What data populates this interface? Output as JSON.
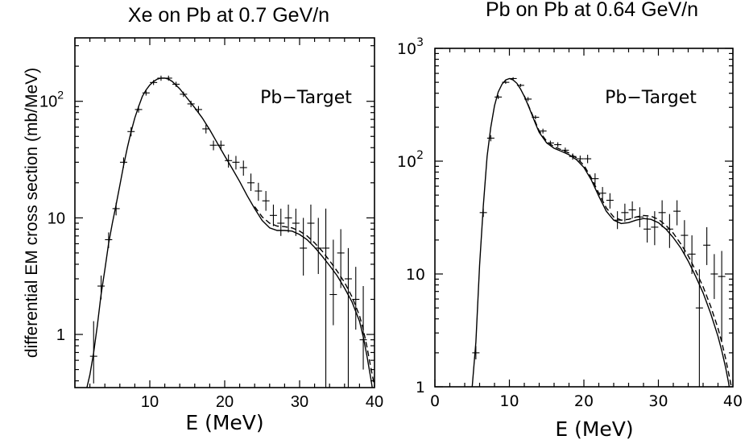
{
  "figure": {
    "ylabel": "differential EM cross section (mb/MeV)"
  },
  "chart_data": [
    {
      "type": "line",
      "title": "Xe on Pb at 0.7 GeV/n",
      "annotation": "Pb−Target",
      "xlabel": "E (MeV)",
      "ylabel": "differential EM cross section (mb/MeV)",
      "xlim": [
        0,
        40
      ],
      "ylim": [
        0.35,
        350
      ],
      "yscale": "log",
      "x_ticks": [
        10,
        20,
        30,
        40
      ],
      "y_ticks": [
        {
          "value": 1,
          "label": "1"
        },
        {
          "value": 10,
          "label": "10"
        },
        {
          "value": 100,
          "label": "10",
          "exponent": "2"
        }
      ],
      "points": [
        {
          "x": 2.5,
          "y": 0.65,
          "ylo": 0.38,
          "yhi": 1.3
        },
        {
          "x": 3.5,
          "y": 2.6,
          "ylo": 2.0,
          "yhi": 3.2
        },
        {
          "x": 4.5,
          "y": 6.5,
          "ylo": 5.5,
          "yhi": 7.5
        },
        {
          "x": 5.5,
          "y": 12,
          "ylo": 10.5,
          "yhi": 13.5
        },
        {
          "x": 6.5,
          "y": 30,
          "ylo": 27,
          "yhi": 33
        },
        {
          "x": 7.5,
          "y": 55,
          "ylo": 50,
          "yhi": 60
        },
        {
          "x": 8.5,
          "y": 85,
          "ylo": 80,
          "yhi": 92
        },
        {
          "x": 9.5,
          "y": 118,
          "ylo": 112,
          "yhi": 125
        },
        {
          "x": 10.5,
          "y": 145,
          "ylo": 138,
          "yhi": 152
        },
        {
          "x": 11.5,
          "y": 158,
          "ylo": 150,
          "yhi": 166
        },
        {
          "x": 12.5,
          "y": 158,
          "ylo": 150,
          "yhi": 166
        },
        {
          "x": 13.5,
          "y": 140,
          "ylo": 133,
          "yhi": 147
        },
        {
          "x": 14.5,
          "y": 115,
          "ylo": 109,
          "yhi": 121
        },
        {
          "x": 15.5,
          "y": 95,
          "ylo": 89,
          "yhi": 101
        },
        {
          "x": 16.5,
          "y": 85,
          "ylo": 79,
          "yhi": 91
        },
        {
          "x": 17.5,
          "y": 58,
          "ylo": 53,
          "yhi": 63
        },
        {
          "x": 18.5,
          "y": 42,
          "ylo": 38,
          "yhi": 46
        },
        {
          "x": 19.5,
          "y": 42,
          "ylo": 38,
          "yhi": 46
        },
        {
          "x": 20.5,
          "y": 31,
          "ylo": 27,
          "yhi": 35
        },
        {
          "x": 21.5,
          "y": 30,
          "ylo": 26,
          "yhi": 34
        },
        {
          "x": 22.5,
          "y": 27,
          "ylo": 23,
          "yhi": 31
        },
        {
          "x": 23.5,
          "y": 20,
          "ylo": 17,
          "yhi": 24
        },
        {
          "x": 24.5,
          "y": 17,
          "ylo": 14,
          "yhi": 20
        },
        {
          "x": 25.5,
          "y": 14,
          "ylo": 11.5,
          "yhi": 17
        },
        {
          "x": 26.5,
          "y": 10.5,
          "ylo": 8.5,
          "yhi": 13
        },
        {
          "x": 27.5,
          "y": 9,
          "ylo": 7,
          "yhi": 12
        },
        {
          "x": 28.5,
          "y": 10,
          "ylo": 7.5,
          "yhi": 13
        },
        {
          "x": 29.5,
          "y": 9,
          "ylo": 7,
          "yhi": 12
        },
        {
          "x": 30.5,
          "y": 5.5,
          "ylo": 3.2,
          "yhi": 10
        },
        {
          "x": 31.5,
          "y": 9,
          "ylo": 6,
          "yhi": 13
        },
        {
          "x": 32.5,
          "y": 5.5,
          "ylo": 3.3,
          "yhi": 10
        },
        {
          "x": 33.5,
          "y": 5.5,
          "ylo": 0.35,
          "yhi": 12
        },
        {
          "x": 34.5,
          "y": 2.2,
          "ylo": 1.2,
          "yhi": 6.5
        },
        {
          "x": 35.5,
          "y": 5,
          "ylo": 2.5,
          "yhi": 8
        },
        {
          "x": 36.5,
          "y": 3,
          "ylo": 0.35,
          "yhi": 5.5
        },
        {
          "x": 37.5,
          "y": 2,
          "ylo": 1.1,
          "yhi": 3.8
        },
        {
          "x": 38.5,
          "y": 0.9,
          "ylo": 0.5,
          "yhi": 2.6
        }
      ],
      "curve_solid": [
        [
          1.6,
          0.35
        ],
        [
          2,
          0.45
        ],
        [
          2.5,
          0.7
        ],
        [
          3,
          1.2
        ],
        [
          3.5,
          2.2
        ],
        [
          4,
          3.6
        ],
        [
          4.5,
          6
        ],
        [
          5,
          9
        ],
        [
          5.5,
          13
        ],
        [
          6,
          19
        ],
        [
          6.5,
          28
        ],
        [
          7,
          40
        ],
        [
          7.5,
          55
        ],
        [
          8,
          72
        ],
        [
          8.5,
          90
        ],
        [
          9,
          110
        ],
        [
          9.5,
          125
        ],
        [
          10,
          138
        ],
        [
          10.5,
          148
        ],
        [
          11,
          155
        ],
        [
          11.5,
          158
        ],
        [
          12,
          158
        ],
        [
          12.5,
          155
        ],
        [
          13,
          148
        ],
        [
          14,
          128
        ],
        [
          15,
          106
        ],
        [
          16,
          88
        ],
        [
          17,
          72
        ],
        [
          18,
          57
        ],
        [
          19,
          44
        ],
        [
          20,
          34
        ],
        [
          21,
          26.5
        ],
        [
          22,
          20.5
        ],
        [
          23,
          15.5
        ],
        [
          24,
          12
        ],
        [
          25,
          9.5
        ],
        [
          26,
          8.2
        ],
        [
          27,
          7.8
        ],
        [
          28,
          7.8
        ],
        [
          29,
          7.7
        ],
        [
          30,
          7.2
        ],
        [
          31,
          6.5
        ],
        [
          32,
          5.6
        ],
        [
          33,
          4.7
        ],
        [
          34,
          3.9
        ],
        [
          35,
          3.2
        ],
        [
          36,
          2.5
        ],
        [
          37,
          1.9
        ],
        [
          38,
          1.3
        ],
        [
          38.5,
          0.95
        ],
        [
          39,
          0.65
        ],
        [
          39.5,
          0.42
        ],
        [
          39.7,
          0.35
        ]
      ],
      "curve_dashed": [
        [
          24,
          12.5
        ],
        [
          25,
          10.2
        ],
        [
          26,
          9
        ],
        [
          27,
          8.5
        ],
        [
          28,
          8.4
        ],
        [
          29,
          8.2
        ],
        [
          30,
          7.7
        ],
        [
          31,
          7
        ],
        [
          32,
          6.1
        ],
        [
          33,
          5.2
        ],
        [
          34,
          4.3
        ],
        [
          35,
          3.5
        ],
        [
          36,
          2.8
        ],
        [
          37,
          2.1
        ],
        [
          38,
          1.45
        ],
        [
          38.5,
          1.1
        ],
        [
          39,
          0.78
        ],
        [
          39.5,
          0.52
        ],
        [
          40,
          0.36
        ]
      ]
    },
    {
      "type": "line",
      "title": "Pb on Pb at 0.64 GeV/n",
      "annotation": "Pb−Target",
      "xlabel": "E (MeV)",
      "xlim": [
        0,
        40
      ],
      "ylim": [
        1,
        1000
      ],
      "yscale": "log",
      "x_ticks": [
        0,
        10,
        20,
        30,
        40
      ],
      "y_ticks": [
        {
          "value": 1,
          "label": "1"
        },
        {
          "value": 10,
          "label": "10"
        },
        {
          "value": 100,
          "label": "10",
          "exponent": "2"
        },
        {
          "value": 1000,
          "label": "10",
          "exponent": "3"
        }
      ],
      "points": [
        {
          "x": 5.5,
          "y": 2,
          "ylo": 1.75,
          "yhi": 2.3
        },
        {
          "x": 6.5,
          "y": 35,
          "ylo": 32,
          "yhi": 38
        },
        {
          "x": 7.5,
          "y": 160,
          "ylo": 150,
          "yhi": 170
        },
        {
          "x": 8.5,
          "y": 370,
          "ylo": 355,
          "yhi": 385
        },
        {
          "x": 9.5,
          "y": 500,
          "ylo": 485,
          "yhi": 515
        },
        {
          "x": 10.5,
          "y": 540,
          "ylo": 525,
          "yhi": 555
        },
        {
          "x": 11.5,
          "y": 470,
          "ylo": 455,
          "yhi": 485
        },
        {
          "x": 12.5,
          "y": 355,
          "ylo": 340,
          "yhi": 370
        },
        {
          "x": 13.5,
          "y": 245,
          "ylo": 235,
          "yhi": 255
        },
        {
          "x": 14.5,
          "y": 185,
          "ylo": 176,
          "yhi": 194
        },
        {
          "x": 15.5,
          "y": 145,
          "ylo": 138,
          "yhi": 152
        },
        {
          "x": 16.5,
          "y": 140,
          "ylo": 133,
          "yhi": 147
        },
        {
          "x": 17.5,
          "y": 125,
          "ylo": 118,
          "yhi": 132
        },
        {
          "x": 18.5,
          "y": 110,
          "ylo": 103,
          "yhi": 117
        },
        {
          "x": 19.5,
          "y": 105,
          "ylo": 98,
          "yhi": 112
        },
        {
          "x": 20.5,
          "y": 105,
          "ylo": 96,
          "yhi": 114
        },
        {
          "x": 21.5,
          "y": 70,
          "ylo": 62,
          "yhi": 78
        },
        {
          "x": 22.5,
          "y": 52,
          "ylo": 45,
          "yhi": 59
        },
        {
          "x": 23.5,
          "y": 45,
          "ylo": 38,
          "yhi": 52
        },
        {
          "x": 24.5,
          "y": 30,
          "ylo": 25,
          "yhi": 36
        },
        {
          "x": 25.5,
          "y": 35,
          "ylo": 29,
          "yhi": 42
        },
        {
          "x": 26.5,
          "y": 37,
          "ylo": 31,
          "yhi": 44
        },
        {
          "x": 27.5,
          "y": 32,
          "ylo": 26,
          "yhi": 39
        },
        {
          "x": 28.5,
          "y": 25,
          "ylo": 19,
          "yhi": 32
        },
        {
          "x": 29.5,
          "y": 26,
          "ylo": 18,
          "yhi": 36
        },
        {
          "x": 30.5,
          "y": 35,
          "ylo": 26,
          "yhi": 45
        },
        {
          "x": 31.5,
          "y": 25,
          "ylo": 17,
          "yhi": 34
        },
        {
          "x": 32.5,
          "y": 36,
          "ylo": 27,
          "yhi": 45
        },
        {
          "x": 33.5,
          "y": 22,
          "ylo": 15,
          "yhi": 30
        },
        {
          "x": 34.5,
          "y": 15,
          "ylo": 10,
          "yhi": 22
        },
        {
          "x": 35.5,
          "y": 5,
          "ylo": 1,
          "yhi": 11
        },
        {
          "x": 36.5,
          "y": 18,
          "ylo": 12,
          "yhi": 26
        },
        {
          "x": 37.5,
          "y": 10,
          "ylo": 6,
          "yhi": 15
        },
        {
          "x": 38.5,
          "y": 9.5,
          "ylo": 2.5,
          "yhi": 16
        }
      ],
      "curve_solid": [
        [
          5,
          1
        ],
        [
          5.5,
          2.5
        ],
        [
          6,
          12
        ],
        [
          6.5,
          40
        ],
        [
          7,
          110
        ],
        [
          7.5,
          200
        ],
        [
          8,
          310
        ],
        [
          8.5,
          410
        ],
        [
          9,
          480
        ],
        [
          9.5,
          525
        ],
        [
          10,
          540
        ],
        [
          10.5,
          525
        ],
        [
          11,
          490
        ],
        [
          11.5,
          435
        ],
        [
          12,
          375
        ],
        [
          12.5,
          315
        ],
        [
          13,
          260
        ],
        [
          13.5,
          215
        ],
        [
          14,
          180
        ],
        [
          15,
          145
        ],
        [
          16,
          130
        ],
        [
          17,
          122
        ],
        [
          18,
          114
        ],
        [
          19,
          103
        ],
        [
          20,
          88
        ],
        [
          21,
          68
        ],
        [
          22,
          49
        ],
        [
          23,
          36
        ],
        [
          24,
          30
        ],
        [
          25,
          28
        ],
        [
          26,
          28.5
        ],
        [
          27,
          30
        ],
        [
          28,
          31
        ],
        [
          29,
          30.5
        ],
        [
          30,
          28.5
        ],
        [
          31,
          25
        ],
        [
          32,
          21
        ],
        [
          33,
          17
        ],
        [
          34,
          13
        ],
        [
          35,
          9.5
        ],
        [
          36,
          6.8
        ],
        [
          37,
          4.5
        ],
        [
          38,
          2.8
        ],
        [
          38.5,
          2.1
        ],
        [
          39,
          1.5
        ],
        [
          39.4,
          1.1
        ],
        [
          39.5,
          1
        ]
      ],
      "curve_dashed": [
        [
          12,
          380
        ],
        [
          13,
          265
        ],
        [
          14,
          185
        ],
        [
          15,
          150
        ],
        [
          16,
          134
        ],
        [
          17,
          126
        ],
        [
          18,
          118
        ],
        [
          19,
          107
        ],
        [
          20,
          92
        ],
        [
          21,
          71
        ],
        [
          22,
          52
        ],
        [
          23,
          38.5
        ],
        [
          24,
          32
        ],
        [
          25,
          30
        ],
        [
          26,
          30.5
        ],
        [
          27,
          32
        ],
        [
          28,
          33
        ],
        [
          29,
          32.5
        ],
        [
          30,
          30.5
        ],
        [
          31,
          27
        ],
        [
          32,
          23
        ],
        [
          33,
          18.5
        ],
        [
          34,
          14.5
        ],
        [
          35,
          10.7
        ],
        [
          36,
          7.7
        ],
        [
          37,
          5.2
        ],
        [
          38,
          3.3
        ],
        [
          38.5,
          2.5
        ],
        [
          39,
          1.8
        ],
        [
          39.5,
          1.25
        ],
        [
          39.8,
          1
        ]
      ]
    }
  ]
}
